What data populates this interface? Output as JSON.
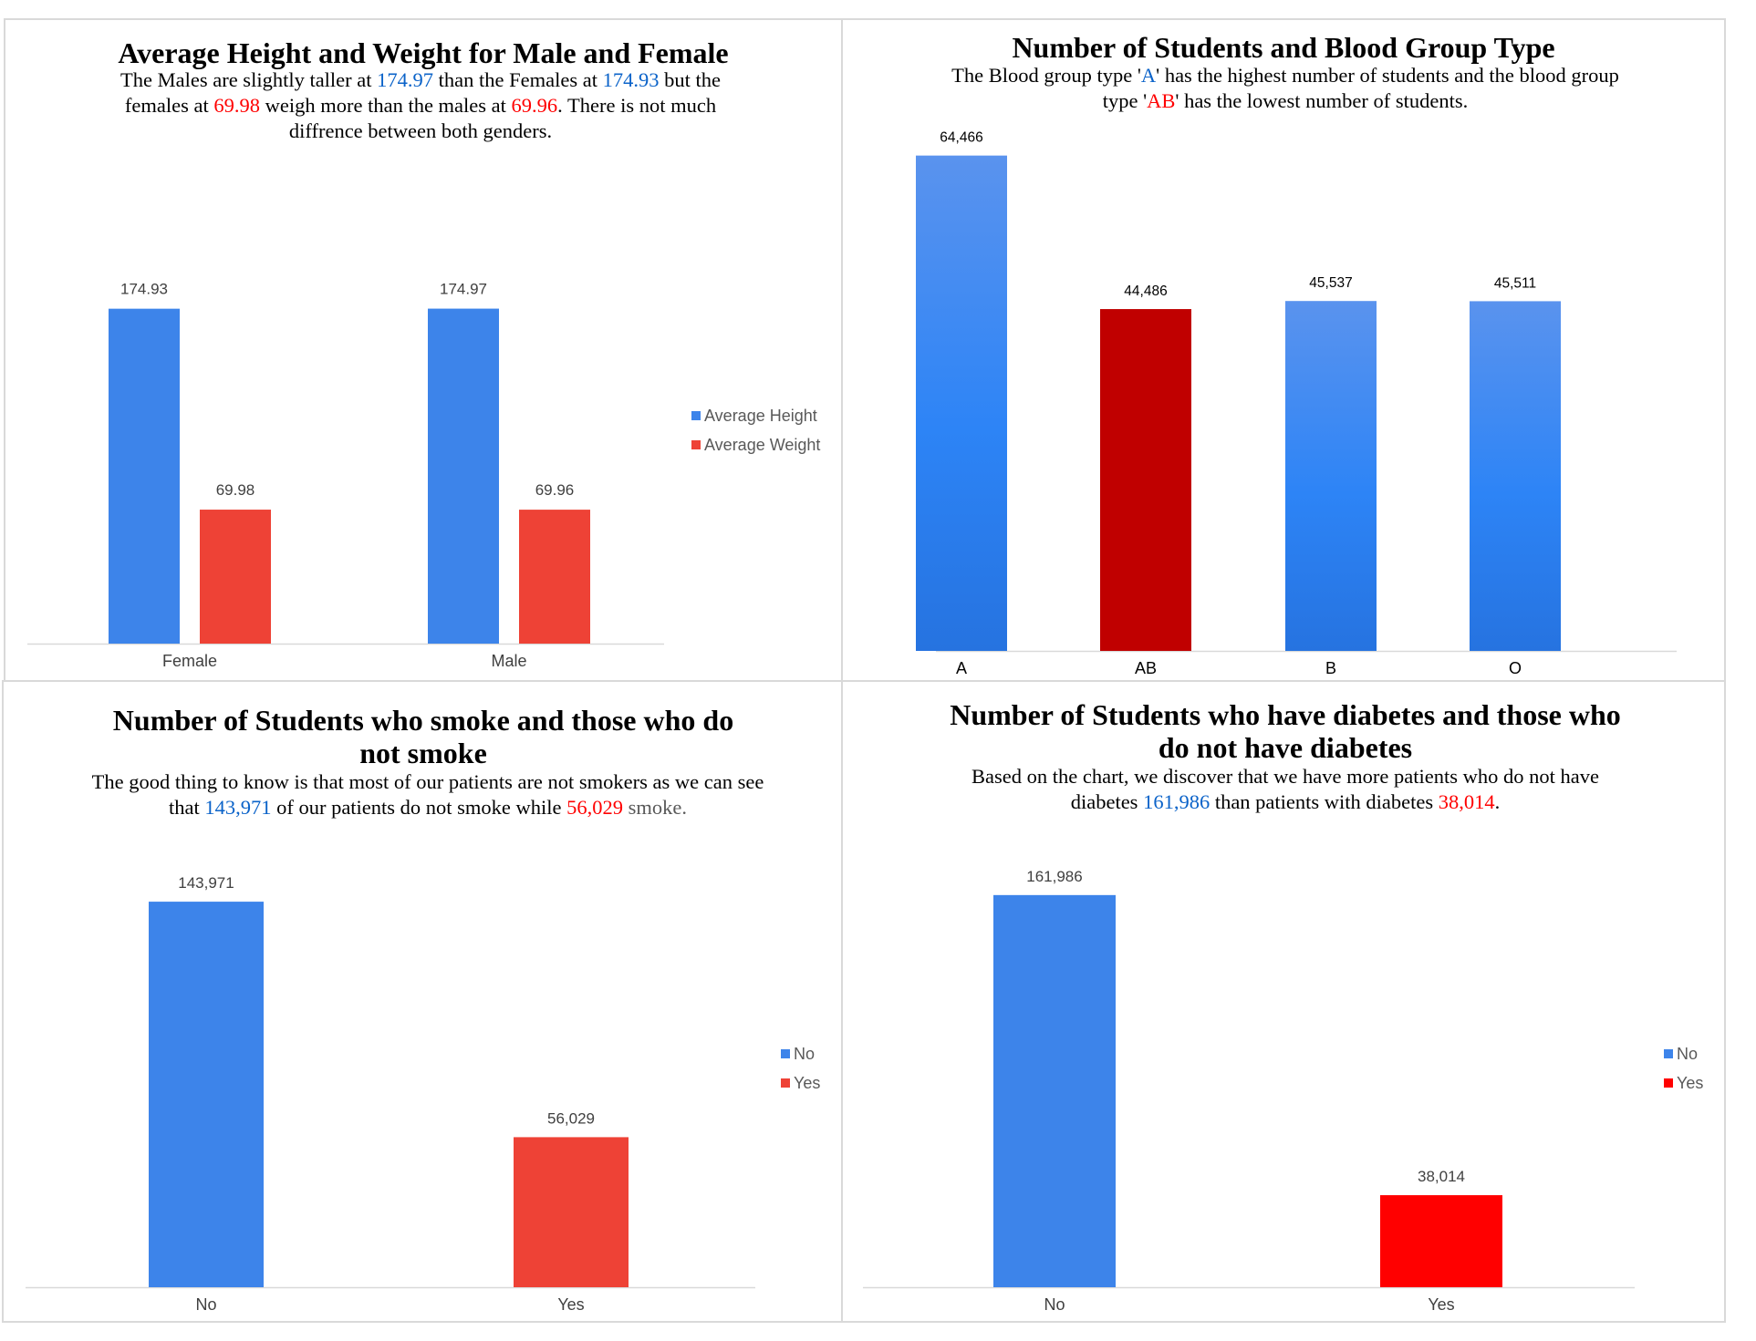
{
  "panels": {
    "height_weight": {
      "title": "Average Height and Weight for Male and Female",
      "sub": {
        "p1": "The Males are slightly taller at ",
        "v1": "174.97",
        "p2": " than the Females at ",
        "v2": "174.93",
        "p3": " but the females at ",
        "v3": "69.98",
        "p4": " weigh more than the males at ",
        "v4": "69.96",
        "p5": ". There is not much diffrence between both genders."
      },
      "legend": [
        "Average Height",
        "Average Weight"
      ]
    },
    "blood": {
      "title": "Number of Students and Blood Group Type",
      "sub": {
        "p1": "The Blood group type '",
        "v1": "A",
        "p2": "' has the highest number of students and the blood group type '",
        "v2": "AB",
        "p3": "' has the lowest number of students."
      }
    },
    "smoke": {
      "title": "Number of Students who smoke and those who do not smoke",
      "sub": {
        "p1": "The good thing to know is that most of our patients are not smokers as we can see that ",
        "v1": "143,971",
        "p2": " of our patients do not smoke while ",
        "v2": "56,029",
        "p3": " smoke."
      },
      "legend": [
        "No",
        "Yes"
      ]
    },
    "diabetes": {
      "title": "Number of Students who have diabetes and those who do not have diabetes",
      "sub": {
        "p1": "Based on the chart, we discover that we have more patients who do not have diabetes ",
        "v1": "161,986",
        "p2": " than patients with diabetes ",
        "v2": "38,014",
        "p3": "."
      },
      "legend": [
        "No",
        "Yes"
      ]
    }
  },
  "chart_data": [
    {
      "type": "bar",
      "title": "Average Height and Weight for Male and Female",
      "categories": [
        "Female",
        "Male"
      ],
      "series": [
        {
          "name": "Average Height",
          "values": [
            174.93,
            174.97
          ],
          "labels": [
            "174.93",
            "174.97"
          ],
          "color": "#3d84ea"
        },
        {
          "name": "Average Weight",
          "values": [
            69.98,
            69.96
          ],
          "labels": [
            "69.98",
            "69.96"
          ],
          "color": "#ee4236"
        }
      ],
      "ylim": [
        0,
        200
      ],
      "grid": false,
      "legend": "right"
    },
    {
      "type": "bar",
      "title": "Number of Students and Blood Group Type",
      "categories": [
        "A",
        "AB",
        "B",
        "O"
      ],
      "values": [
        64466,
        44486,
        45537,
        45511
      ],
      "labels": [
        "64,466",
        "44,486",
        "45,537",
        "45,511"
      ],
      "colors": [
        "#3b86f0",
        "#c00000",
        "#3b86f0",
        "#3b86f0"
      ],
      "ylim": [
        0,
        70000
      ],
      "grid": false
    },
    {
      "type": "bar",
      "title": "Number of Students who smoke and those who do not smoke",
      "categories": [
        "No",
        "Yes"
      ],
      "values": [
        143971,
        56029
      ],
      "labels": [
        "143,971",
        "56,029"
      ],
      "colors": [
        "#3d84ea",
        "#ee4236"
      ],
      "ylim": [
        0,
        160000
      ],
      "grid": false,
      "legend": "right"
    },
    {
      "type": "bar",
      "title": "Number of Students who have diabetes and those who do not have diabetes",
      "categories": [
        "No",
        "Yes"
      ],
      "values": [
        161986,
        38014
      ],
      "labels": [
        "161,986",
        "38,014"
      ],
      "colors": [
        "#3d84ea",
        "#ff0000"
      ],
      "ylim": [
        0,
        180000
      ],
      "grid": false,
      "legend": "right"
    }
  ]
}
